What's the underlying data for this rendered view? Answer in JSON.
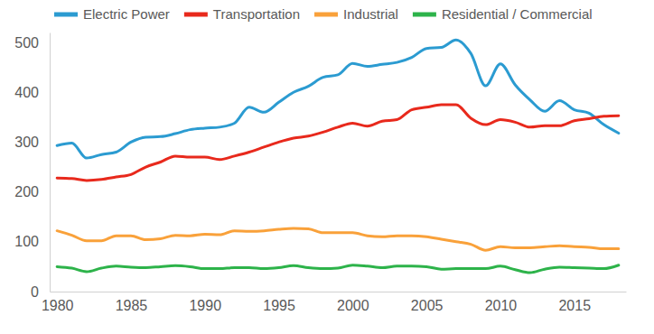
{
  "chart_data": {
    "type": "line",
    "x": [
      1980,
      1981,
      1982,
      1983,
      1984,
      1985,
      1986,
      1987,
      1988,
      1989,
      1990,
      1991,
      1992,
      1993,
      1994,
      1995,
      1996,
      1997,
      1998,
      1999,
      2000,
      2001,
      2002,
      2003,
      2004,
      2005,
      2006,
      2007,
      2008,
      2009,
      2010,
      2011,
      2012,
      2013,
      2014,
      2015,
      2016,
      2017,
      2018
    ],
    "series": [
      {
        "name": "Electric Power",
        "color": "#2b9bd1",
        "values": [
          293,
          298,
          268,
          275,
          280,
          300,
          310,
          311,
          317,
          325,
          328,
          330,
          338,
          370,
          360,
          380,
          400,
          412,
          430,
          435,
          458,
          452,
          456,
          460,
          470,
          488,
          490,
          505,
          478,
          413,
          457,
          415,
          385,
          362,
          383,
          365,
          358,
          335,
          318
        ]
      },
      {
        "name": "Transportation",
        "color": "#e8291c",
        "values": [
          228,
          227,
          223,
          225,
          230,
          235,
          250,
          260,
          272,
          270,
          270,
          265,
          272,
          280,
          290,
          300,
          308,
          312,
          320,
          330,
          338,
          332,
          342,
          345,
          365,
          370,
          375,
          375,
          348,
          335,
          345,
          340,
          330,
          333,
          333,
          343,
          347,
          352,
          353
        ]
      },
      {
        "name": "Industrial",
        "color": "#f9a13a",
        "values": [
          122,
          113,
          102,
          102,
          112,
          112,
          104,
          106,
          113,
          112,
          115,
          114,
          122,
          121,
          122,
          125,
          127,
          126,
          118,
          118,
          118,
          112,
          110,
          112,
          112,
          110,
          105,
          100,
          95,
          83,
          90,
          88,
          88,
          90,
          92,
          90,
          89,
          86,
          86
        ]
      },
      {
        "name": "Residential / Commercial",
        "color": "#2db34a",
        "values": [
          50,
          47,
          40,
          47,
          51,
          49,
          48,
          50,
          52,
          50,
          46,
          46,
          48,
          48,
          46,
          48,
          52,
          48,
          46,
          47,
          53,
          51,
          48,
          51,
          51,
          50,
          45,
          46,
          46,
          46,
          51,
          44,
          38,
          45,
          49,
          48,
          47,
          46,
          53
        ]
      }
    ],
    "xlim": [
      1979.5,
      2018.5
    ],
    "xticks": [
      1980,
      1985,
      1990,
      1995,
      2000,
      2005,
      2010,
      2015
    ],
    "ylim": [
      0,
      520
    ],
    "yticks": [
      0,
      100,
      200,
      300,
      400,
      500
    ],
    "grid": false,
    "legend": "top"
  }
}
